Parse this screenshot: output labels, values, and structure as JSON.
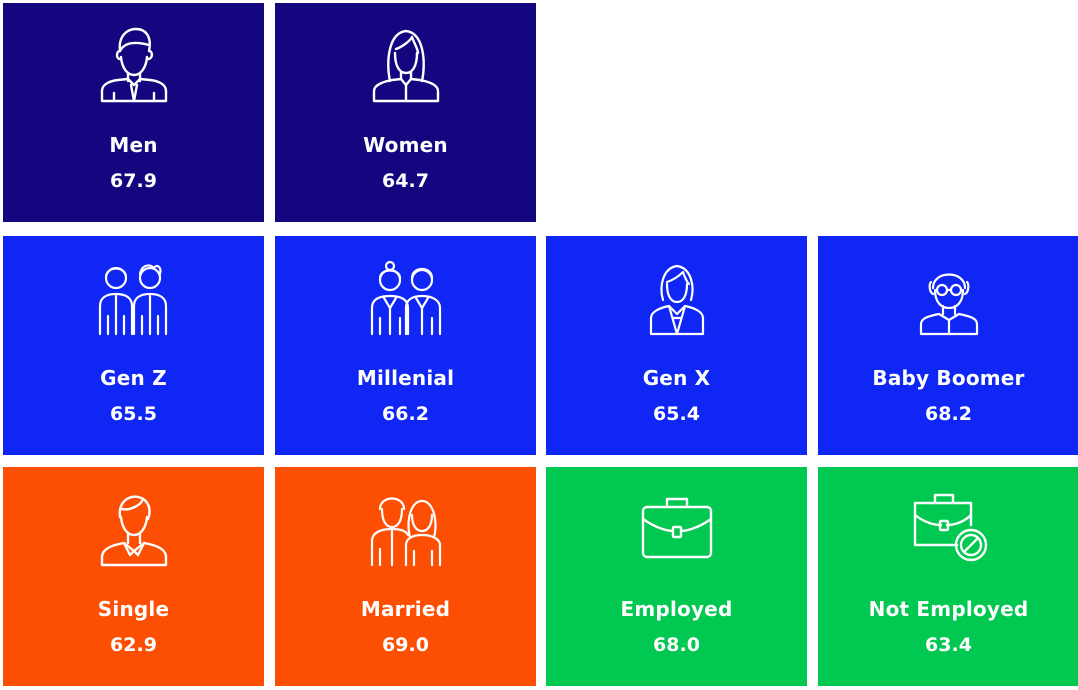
{
  "colors": {
    "gender": "#13067f",
    "generation": "#0f26f5",
    "relationship": "#fc4f04",
    "employment": "#00c850",
    "text": "#ffffff"
  },
  "tiles": [
    {
      "label": "Men",
      "value": "67.9",
      "icon": "man-icon",
      "group": "gender"
    },
    {
      "label": "Women",
      "value": "64.7",
      "icon": "woman-icon",
      "group": "gender"
    },
    {
      "label": "Gen Z",
      "value": "65.5",
      "icon": "gen-z-icon",
      "group": "generation"
    },
    {
      "label": "Millenial",
      "value": "66.2",
      "icon": "millenial-icon",
      "group": "generation"
    },
    {
      "label": "Gen X",
      "value": "65.4",
      "icon": "gen-x-icon",
      "group": "generation"
    },
    {
      "label": "Baby Boomer",
      "value": "68.2",
      "icon": "baby-boomer-icon",
      "group": "generation"
    },
    {
      "label": "Single",
      "value": "62.9",
      "icon": "single-person-icon",
      "group": "relationship"
    },
    {
      "label": "Married",
      "value": "69.0",
      "icon": "married-couple-icon",
      "group": "relationship"
    },
    {
      "label": "Employed",
      "value": "68.0",
      "icon": "briefcase-icon",
      "group": "employment"
    },
    {
      "label": "Not Employed",
      "value": "63.4",
      "icon": "briefcase-blocked-icon",
      "group": "employment"
    }
  ]
}
